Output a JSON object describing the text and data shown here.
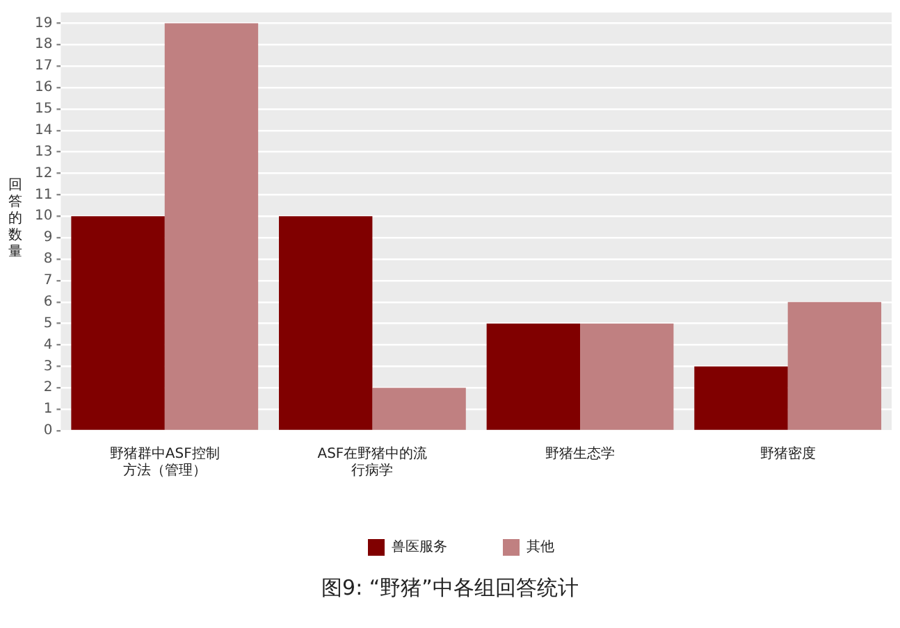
{
  "chart_data": {
    "type": "bar",
    "title": "图9: “野猪”中各组回答统计",
    "ylabel": "回答的数量",
    "categories": [
      "野猪群中ASF控制方法（管理）",
      "ASF在野猪中的流行病学",
      "野猪生态学",
      "野猪密度"
    ],
    "series": [
      {
        "name": "兽医服务",
        "color": "#800000",
        "values": [
          10,
          10,
          5,
          3
        ]
      },
      {
        "name": "其他",
        "color": "#c08081",
        "values": [
          19,
          2,
          5,
          6
        ]
      }
    ],
    "ylim": [
      0,
      19.5
    ],
    "yticks": [
      0,
      1,
      2,
      3,
      4,
      5,
      6,
      7,
      8,
      9,
      10,
      11,
      12,
      13,
      14,
      15,
      16,
      17,
      18,
      19
    ],
    "grid": "y",
    "legend": "bottom"
  }
}
